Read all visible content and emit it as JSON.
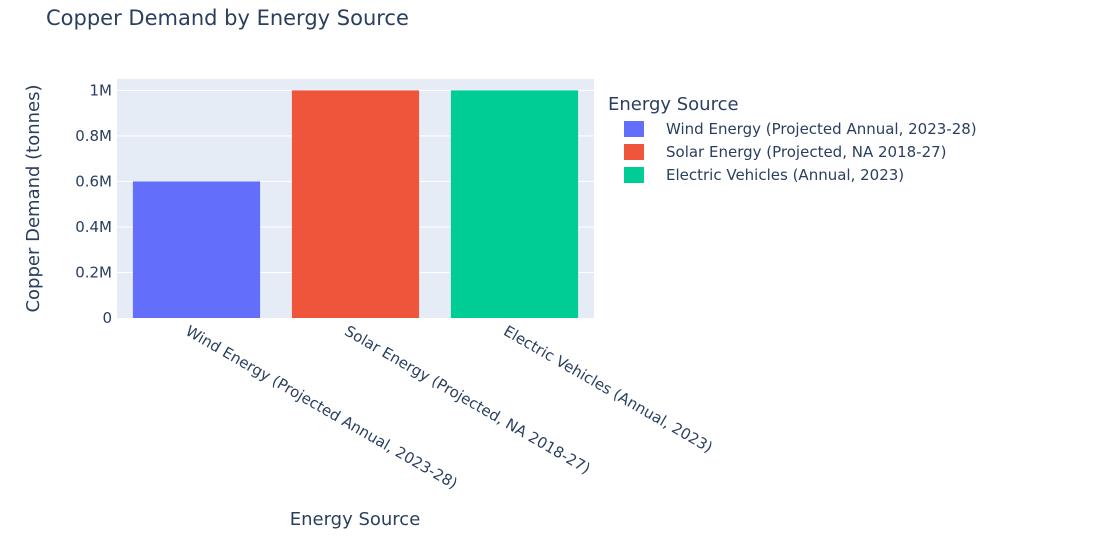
{
  "chart_data": {
    "type": "bar",
    "title": "Copper Demand by Energy Source",
    "xlabel": "Energy Source",
    "ylabel": "Copper Demand (tonnes)",
    "categories": [
      "Wind Energy (Projected Annual, 2023-28)",
      "Solar Energy (Projected, NA 2018-27)",
      "Electric Vehicles (Annual, 2023)"
    ],
    "values": [
      600000,
      1000000,
      1000000
    ],
    "colors": [
      "#636efa",
      "#ef553b",
      "#00cc96"
    ],
    "ylim": [
      0,
      1050000
    ],
    "yticks": [
      0,
      200000,
      400000,
      600000,
      800000,
      1000000
    ],
    "ytick_labels": [
      "0",
      "0.2M",
      "0.4M",
      "0.6M",
      "0.8M",
      "1M"
    ],
    "grid": true,
    "legend": {
      "title": "Energy Source",
      "placement": "top-right",
      "entries": [
        "Wind Energy (Projected Annual, 2023-28)",
        "Solar Energy (Projected, NA 2018-27)",
        "Electric Vehicles (Annual, 2023)"
      ]
    },
    "background": "#e5ecf6"
  }
}
